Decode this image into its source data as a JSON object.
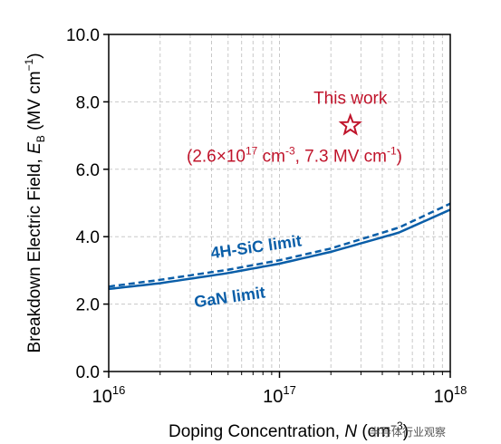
{
  "chart_data": {
    "type": "line",
    "x_scale": "log",
    "xlim": [
      1e+16,
      1e+18
    ],
    "ylim": [
      0.0,
      10.0
    ],
    "grid": true,
    "xlabel": {
      "main": "Doping Concentration, ",
      "var": "N",
      "unit_open": " (cm",
      "unit_exp": "−3",
      "unit_close": ")"
    },
    "ylabel": {
      "main": "Breakdown Electric Field, ",
      "var": "E",
      "sub": "B",
      "unit_open": " (MV cm",
      "unit_exp": "−1",
      "unit_close": ")"
    },
    "y_ticks": [
      "0.0",
      "2.0",
      "4.0",
      "6.0",
      "8.0",
      "10.0"
    ],
    "x_ticks": [
      {
        "base": "10",
        "exp": "16",
        "value": 1e+16
      },
      {
        "base": "10",
        "exp": "17",
        "value": 1e+17
      },
      {
        "base": "10",
        "exp": "18",
        "value": 1e+18
      }
    ],
    "series": [
      {
        "name": "4H-SiC limit",
        "style": "dashed",
        "color": "#0a5ea8",
        "x": [
          1e+16,
          2e+16,
          5e+16,
          1e+17,
          2e+17,
          5e+17,
          1e+18
        ],
        "y": [
          2.52,
          2.72,
          3.02,
          3.3,
          3.65,
          4.27,
          4.98
        ]
      },
      {
        "name": "GaN limit",
        "style": "solid",
        "color": "#0a5ea8",
        "x": [
          1e+16,
          2e+16,
          5e+16,
          1e+17,
          2e+17,
          5e+17,
          1e+18
        ],
        "y": [
          2.45,
          2.62,
          2.92,
          3.2,
          3.55,
          4.12,
          4.8
        ]
      }
    ],
    "annotations": [
      {
        "kind": "marker",
        "marker": "star",
        "color": "#c0142b",
        "x": 2.6e+17,
        "y": 7.3,
        "label": "This work",
        "coord_text": {
          "pre": "(2.6×10",
          "exp1": "17",
          "mid": " cm",
          "exp2": "-3",
          "post": ", 7.3 MV cm",
          "exp3": "-1",
          "end": ")"
        }
      }
    ]
  },
  "watermark": "半导体行业观察"
}
